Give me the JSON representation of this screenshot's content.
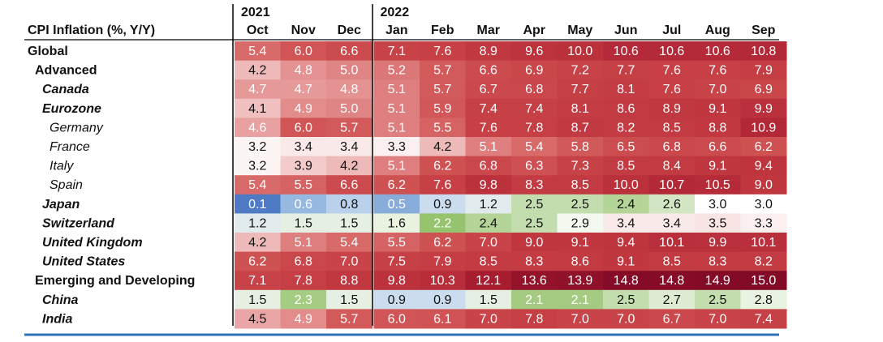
{
  "chart_data": {
    "type": "heatmap",
    "title": "CPI Inflation (%, Y/Y)",
    "year_labels": [
      {
        "year": "2021",
        "col_index": 0
      },
      {
        "year": "2022",
        "col_index": 3
      }
    ],
    "columns": [
      "Oct",
      "Nov",
      "Dec",
      "Jan",
      "Feb",
      "Mar",
      "Apr",
      "May",
      "Jun",
      "Jul",
      "Aug",
      "Sep"
    ],
    "rows": [
      {
        "label": "Global",
        "style": "plain",
        "level": 0,
        "values": [
          "5.4",
          "6.0",
          "6.6",
          "7.1",
          "7.6",
          "8.9",
          "9.6",
          "10.0",
          "10.6",
          "10.6",
          "10.6",
          "10.8"
        ]
      },
      {
        "label": "Advanced",
        "style": "plain",
        "level": 1,
        "values": [
          "4.2",
          "4.8",
          "5.0",
          "5.2",
          "5.7",
          "6.6",
          "6.9",
          "7.2",
          "7.7",
          "7.6",
          "7.6",
          "7.9"
        ]
      },
      {
        "label": "Canada",
        "style": "bold-italic",
        "level": 2,
        "values": [
          "4.7",
          "4.7",
          "4.8",
          "5.1",
          "5.7",
          "6.7",
          "6.8",
          "7.7",
          "8.1",
          "7.6",
          "7.0",
          "6.9"
        ]
      },
      {
        "label": "Eurozone",
        "style": "bold-italic",
        "level": 2,
        "values": [
          "4.1",
          "4.9",
          "5.0",
          "5.1",
          "5.9",
          "7.4",
          "7.4",
          "8.1",
          "8.6",
          "8.9",
          "9.1",
          "9.9"
        ]
      },
      {
        "label": "Germany",
        "style": "italic",
        "level": 3,
        "values": [
          "4.6",
          "6.0",
          "5.7",
          "5.1",
          "5.5",
          "7.6",
          "7.8",
          "8.7",
          "8.2",
          "8.5",
          "8.8",
          "10.9"
        ]
      },
      {
        "label": "France",
        "style": "italic",
        "level": 3,
        "values": [
          "3.2",
          "3.4",
          "3.4",
          "3.3",
          "4.2",
          "5.1",
          "5.4",
          "5.8",
          "6.5",
          "6.8",
          "6.6",
          "6.2"
        ]
      },
      {
        "label": "Italy",
        "style": "italic",
        "level": 3,
        "values": [
          "3.2",
          "3.9",
          "4.2",
          "5.1",
          "6.2",
          "6.8",
          "6.3",
          "7.3",
          "8.5",
          "8.4",
          "9.1",
          "9.4"
        ]
      },
      {
        "label": "Spain",
        "style": "italic",
        "level": 3,
        "values": [
          "5.4",
          "5.5",
          "6.6",
          "6.2",
          "7.6",
          "9.8",
          "8.3",
          "8.5",
          "10.0",
          "10.7",
          "10.5",
          "9.0"
        ]
      },
      {
        "label": "Japan",
        "style": "bold-italic",
        "level": 2,
        "values": [
          "0.1",
          "0.6",
          "0.8",
          "0.5",
          "0.9",
          "1.2",
          "2.5",
          "2.5",
          "2.4",
          "2.6",
          "3.0",
          "3.0"
        ]
      },
      {
        "label": "Switzerland",
        "style": "bold-italic",
        "level": 2,
        "values": [
          "1.2",
          "1.5",
          "1.5",
          "1.6",
          "2.2",
          "2.4",
          "2.5",
          "2.9",
          "3.4",
          "3.4",
          "3.5",
          "3.3"
        ]
      },
      {
        "label": "United Kingdom",
        "style": "bold-italic",
        "level": 2,
        "values": [
          "4.2",
          "5.1",
          "5.4",
          "5.5",
          "6.2",
          "7.0",
          "9.0",
          "9.1",
          "9.4",
          "10.1",
          "9.9",
          "10.1"
        ]
      },
      {
        "label": "United States",
        "style": "bold-italic",
        "level": 2,
        "values": [
          "6.2",
          "6.8",
          "7.0",
          "7.5",
          "7.9",
          "8.5",
          "8.3",
          "8.6",
          "9.1",
          "8.5",
          "8.3",
          "8.2"
        ]
      },
      {
        "label": "Emerging and Developing",
        "style": "plain",
        "level": 1,
        "values": [
          "7.1",
          "7.8",
          "8.8",
          "9.8",
          "10.3",
          "12.1",
          "13.6",
          "13.9",
          "14.8",
          "14.8",
          "14.9",
          "15.0"
        ]
      },
      {
        "label": "China",
        "style": "bold-italic",
        "level": 2,
        "values": [
          "1.5",
          "2.3",
          "1.5",
          "0.9",
          "0.9",
          "1.5",
          "2.1",
          "2.1",
          "2.5",
          "2.7",
          "2.5",
          "2.8"
        ]
      },
      {
        "label": "India",
        "style": "bold-italic",
        "level": 2,
        "values": [
          "4.5",
          "4.9",
          "5.7",
          "6.0",
          "6.1",
          "7.0",
          "7.8",
          "7.0",
          "7.0",
          "6.7",
          "7.0",
          "7.4"
        ]
      }
    ],
    "grid": false,
    "colors": {
      "rule_blue": "#2e75b6",
      "separator": "#000000"
    }
  }
}
